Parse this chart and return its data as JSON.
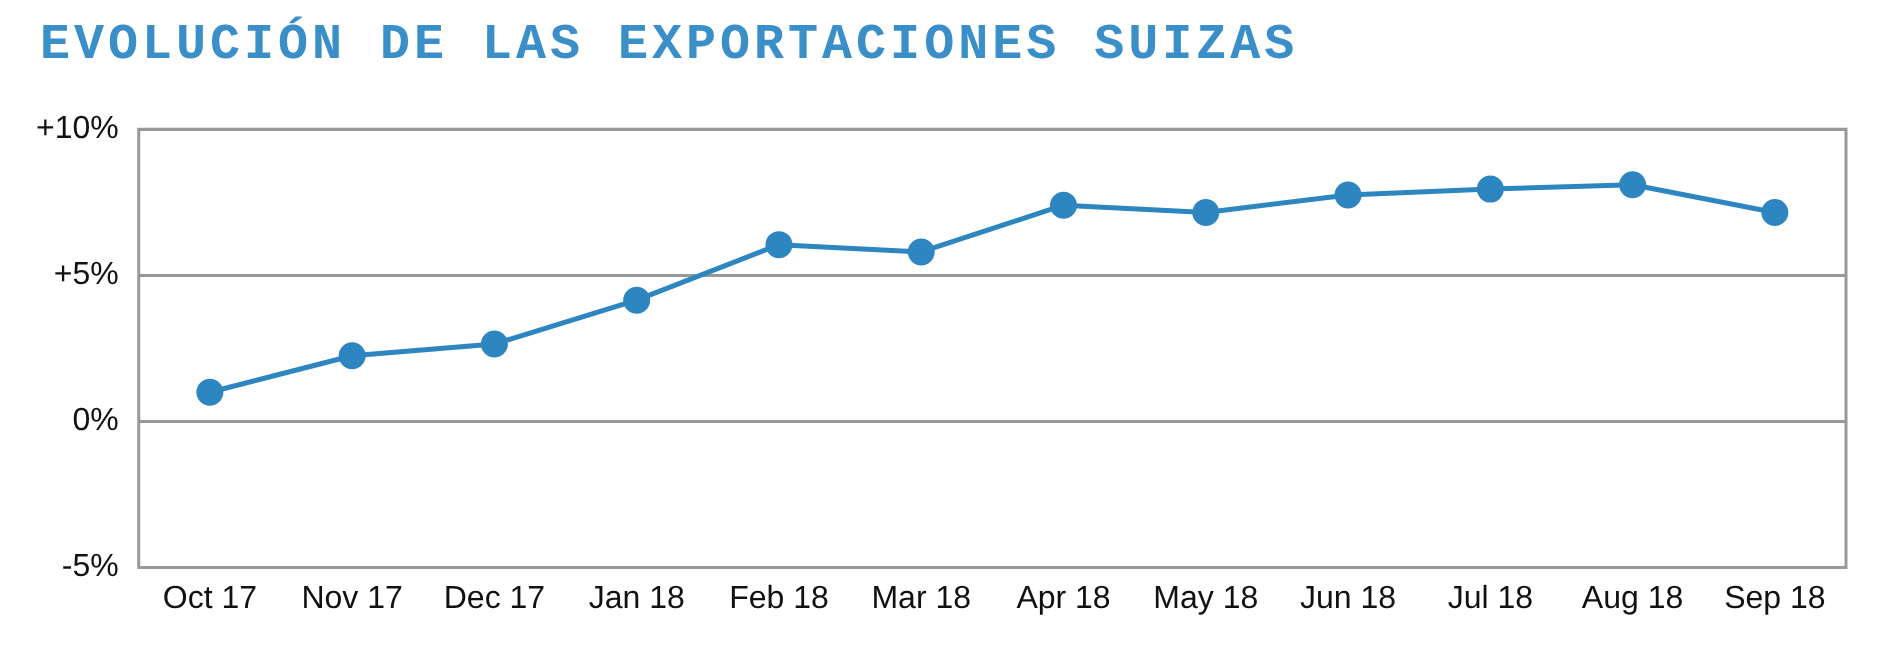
{
  "chart_data": {
    "type": "line",
    "title": "EVOLUCIÓN DE LAS EXPORTACIONES SUIZAS",
    "categories": [
      "Oct 17",
      "Nov 17",
      "Dec 17",
      "Jan 18",
      "Feb 18",
      "Mar 18",
      "Apr 18",
      "May 18",
      "Jun 18",
      "Jul 18",
      "Aug 18",
      "Sep 18"
    ],
    "series": [
      {
        "color": "#2e86c1",
        "values": [
          1.0,
          2.25,
          2.65,
          4.15,
          6.05,
          5.8,
          7.4,
          7.15,
          7.75,
          7.95,
          8.1,
          7.15
        ]
      }
    ],
    "ylim": [
      -5,
      10
    ],
    "yticks": [
      {
        "value": -5,
        "label": "-5%"
      },
      {
        "value": 0,
        "label": "0%"
      },
      {
        "value": 5,
        "label": "+5%"
      },
      {
        "value": 10,
        "label": "+10%"
      }
    ],
    "grid": "y",
    "legend": false,
    "marker": "circle",
    "line_style": "solid"
  }
}
